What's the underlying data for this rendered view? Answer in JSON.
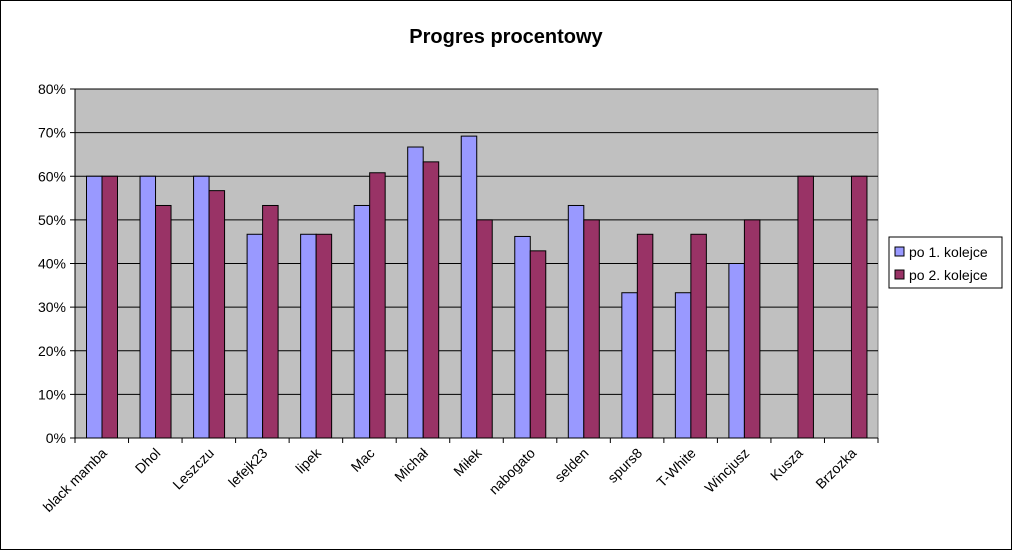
{
  "chart_data": {
    "type": "bar",
    "title": "Progres procentowy",
    "xlabel": "",
    "ylabel": "",
    "ylim": [
      0,
      80
    ],
    "y_ticks": [
      "0%",
      "10%",
      "20%",
      "30%",
      "40%",
      "50%",
      "60%",
      "70%",
      "80%"
    ],
    "y_tick_values": [
      0,
      10,
      20,
      30,
      40,
      50,
      60,
      70,
      80
    ],
    "grid": true,
    "legend_position": "right",
    "categories": [
      "black mamba",
      "Dhol",
      "Leszczu",
      "lefejk23",
      "lipek",
      "Mac",
      "Michał",
      "Miłek",
      "nabogato",
      "selden",
      "spurs8",
      "T-White",
      "Wincjusz",
      "Kusza",
      "Brzozka"
    ],
    "series": [
      {
        "name": "po 1. kolejce",
        "color": "#9999ff",
        "values": [
          60,
          60,
          60,
          46.7,
          46.7,
          53.3,
          66.7,
          69.2,
          46.2,
          53.3,
          33.3,
          33.3,
          40,
          null,
          null
        ]
      },
      {
        "name": "po 2. kolejce",
        "color": "#993366",
        "values": [
          60,
          53.3,
          56.7,
          53.3,
          46.7,
          60.8,
          63.3,
          50,
          42.9,
          50,
          46.7,
          46.7,
          50,
          60,
          60
        ]
      }
    ],
    "plot_background": "#c0c0c0"
  }
}
